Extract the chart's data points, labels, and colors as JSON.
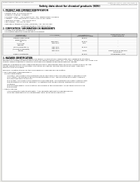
{
  "bg_color": "#e8e8e4",
  "page_bg": "#ffffff",
  "header_left": "Product Name: Lithium Ion Battery Cell",
  "header_right_line1": "Substance Control: SDS-049-09/09-10",
  "header_right_line2": "Established / Revision: Dec.7.2009",
  "title": "Safety data sheet for chemical products (SDS)",
  "section1_header": "1. PRODUCT AND COMPANY IDENTIFICATION",
  "s1_lines": [
    "  • Product name: Lithium Ion Battery Cell",
    "  • Product code: Cylindrical-type cell",
    "    SY-B650U, SY-B650L, SY-B650A",
    "  • Company name:    Sanyo Electric Co., Ltd.  Mobile Energy Company",
    "  • Address:    2001 Kamimakura, Sumoto City, Hyogo, Japan",
    "  • Telephone number:   +81-799-26-4111",
    "  • Fax number:  +81-799-26-4129",
    "  • Emergency telephone number (Weekday) +81-799-26-3962",
    "                                   (Night and holiday) +81-799-26-4101"
  ],
  "section2_header": "2. COMPOSITION / INFORMATION ON INGREDIENTS",
  "s2_intro": "  • Substance or preparation: Preparation",
  "s2_subhead": "  • Information about the chemical nature of product:",
  "table_rows": [
    [
      "Lithium cobalt oxide",
      "-",
      "30-60%",
      ""
    ],
    [
      "(LiMnCoO2(O))",
      "",
      "",
      ""
    ],
    [
      "Iron",
      "2439-88-5",
      "10-30%",
      "-"
    ],
    [
      "Aluminium",
      "7429-90-5",
      "2.5%",
      "-"
    ],
    [
      "Graphite",
      "",
      "",
      ""
    ],
    [
      "(Kind of graphite-1)",
      "7782-42-5",
      "10-20%",
      "-"
    ],
    [
      "(All kinds of graphite)",
      "7782-44-0",
      "",
      ""
    ],
    [
      "Copper",
      "7440-50-8",
      "5-15%",
      "Sensitization of the skin"
    ],
    [
      "",
      "",
      "",
      "group No.2"
    ],
    [
      "Organic electrolyte",
      "-",
      "10-20%",
      "Inflammable liquid"
    ]
  ],
  "section3_header": "3. HAZARDS IDENTIFICATION",
  "s3_para1": "For this battery cell, chemical materials are sealed in a hermetically sealed metal case, designed to withstand",
  "s3_para1b": "temperature changes caused by electrochemical reactions during normal use. As a result, during normal use, there is no",
  "s3_para1c": "physical danger of ignition or explosion and there is no danger of hazardous materials leakage.",
  "s3_para2": "However, if exposed to a fire, added mechanical shocks, decomposed, when an electric current of many mA use,",
  "s3_para2b": "the gas release vent will be operated. The battery cell case will be breached at the extreme. Hazardous",
  "s3_para2c": "materials may be released.",
  "s3_para3": "Moreover, if heated strongly by the surrounding fire, some gas may be emitted.",
  "s3_bullet1": "• Most important hazard and effects:",
  "s3_sub1": "Human health effects:",
  "s3_inh": "        Inhalation: The release of the electrolyte has an anesthesia action and stimulates in respiratory tract.",
  "s3_skin1": "        Skin contact: The release of the electrolyte stimulates a skin. The electrolyte skin contact causes a",
  "s3_skin2": "        sore and stimulation on the skin.",
  "s3_eye1": "        Eye contact: The release of the electrolyte stimulates eyes. The electrolyte eye contact causes a sore",
  "s3_eye2": "        and stimulation on the eye. Especially, a substance that causes a strong inflammation of the eye is",
  "s3_eye3": "        contained.",
  "s3_env1": "        Environmental effects: Since a battery cell remains in the environment, do not throw out it into the",
  "s3_env2": "        environment.",
  "s3_bullet2": "• Specific hazards:",
  "s3_spec1": "        If the electrolyte contacts with water, it will generate detrimental hydrogen fluoride.",
  "s3_spec2": "        Since the liquid electrolyte is inflammable liquid, do not bring close to fire."
}
